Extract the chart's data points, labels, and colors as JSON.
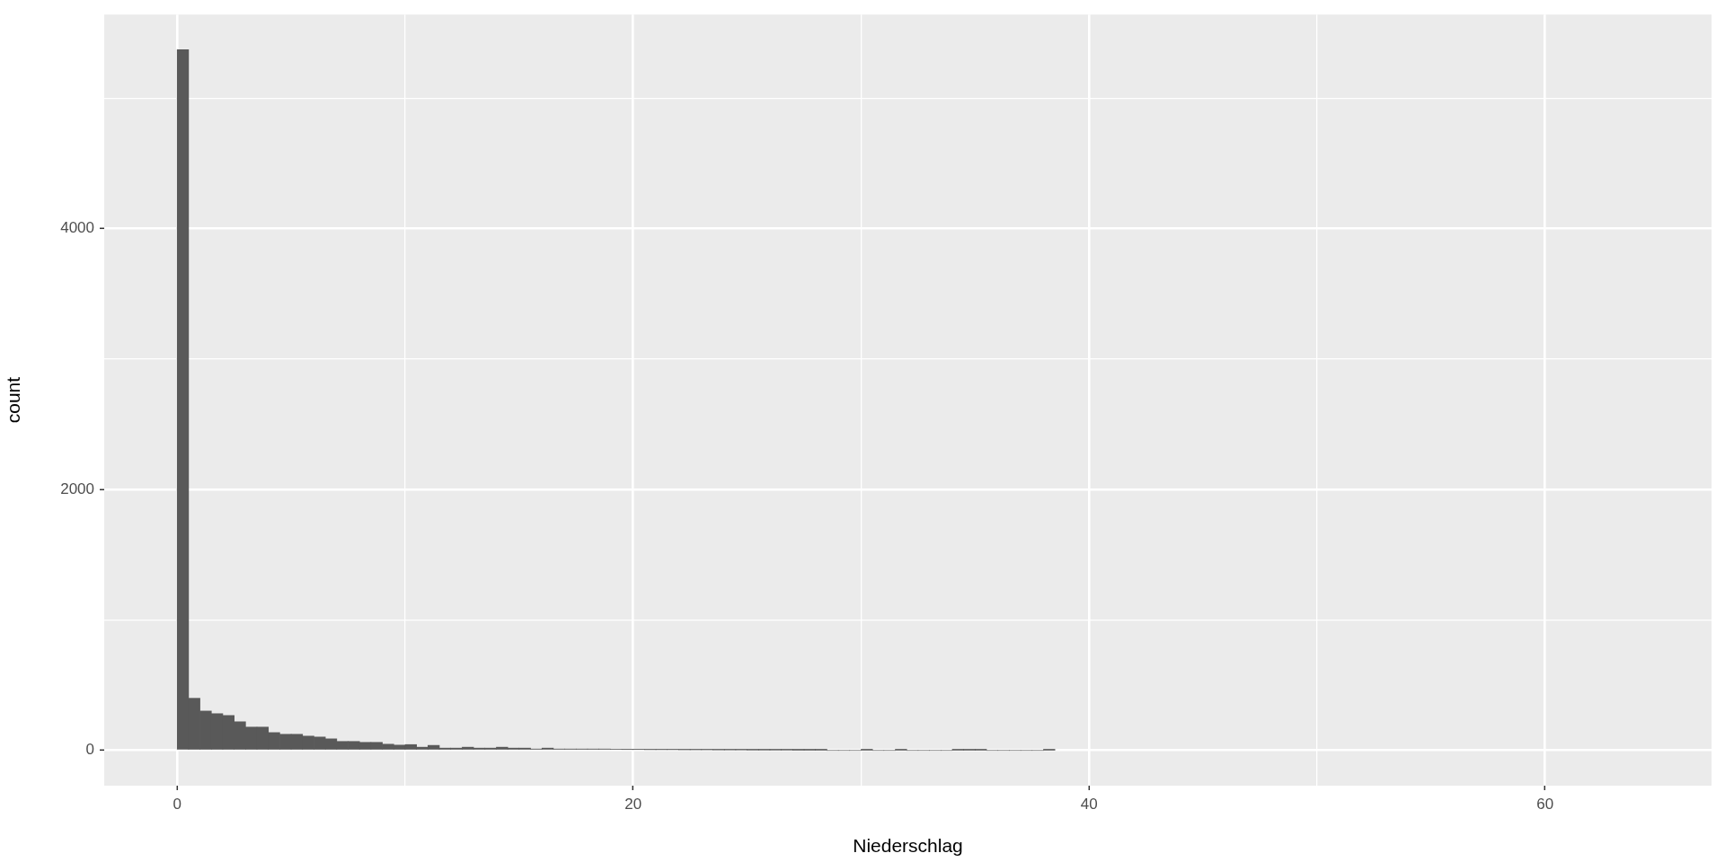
{
  "chart_data": {
    "type": "histogram",
    "xlabel": "Niederschlag",
    "ylabel": "count",
    "color": "#595959",
    "bins": [
      0,
      0.5,
      1,
      1.5,
      2,
      2.5,
      3,
      3.5,
      4,
      4.5,
      5,
      5.5,
      6,
      6.5,
      7,
      7.5,
      8,
      8.5,
      9,
      9.5,
      10,
      10.5,
      11,
      11.5,
      12,
      12.5,
      13,
      13.5,
      14,
      14.5,
      15,
      15.5,
      16,
      16.5,
      17,
      17.5,
      18,
      18.5,
      19,
      19.5,
      20,
      20.5,
      21,
      21.5,
      22,
      22.5,
      23,
      23.5,
      24,
      24.5,
      25,
      25.5,
      26,
      26.5,
      27,
      27.5,
      28,
      28.5,
      29,
      29.5,
      30,
      30.5,
      31,
      31.5,
      32,
      32.5,
      33,
      33.5,
      34,
      34.5,
      35,
      35.5,
      36,
      36.5,
      37,
      37.5,
      38,
      38.5
    ],
    "values": [
      5370,
      400,
      302,
      282,
      268,
      220,
      179,
      179,
      137,
      124,
      124,
      110,
      103,
      89,
      69,
      69,
      62,
      62,
      48,
      41,
      45,
      25,
      39,
      18,
      18,
      25,
      18,
      18,
      25,
      18,
      18,
      11,
      18,
      11,
      11,
      11,
      11,
      11,
      8,
      7,
      7,
      6,
      6,
      6,
      5,
      5,
      5,
      4,
      4,
      4,
      3,
      3,
      3,
      3,
      2,
      2,
      2,
      0,
      0,
      0,
      2,
      0,
      0,
      2,
      0,
      0,
      0,
      0,
      2,
      2,
      2,
      0,
      0,
      0,
      0,
      0,
      2
    ],
    "xlim": [
      -3.2,
      67.3
    ],
    "ylim": [
      -270,
      5640
    ],
    "xticks": [
      0,
      {
        "value": 10,
        "label": null
      },
      20,
      {
        "value": 30,
        "label": null
      },
      40,
      {
        "value": 50,
        "label": null
      },
      60
    ],
    "yticks": [
      0,
      {
        "value": 1000,
        "label": null
      },
      2000,
      {
        "value": 3000,
        "label": null
      },
      4000,
      {
        "value": 5000,
        "label": null
      }
    ],
    "grid": true
  }
}
